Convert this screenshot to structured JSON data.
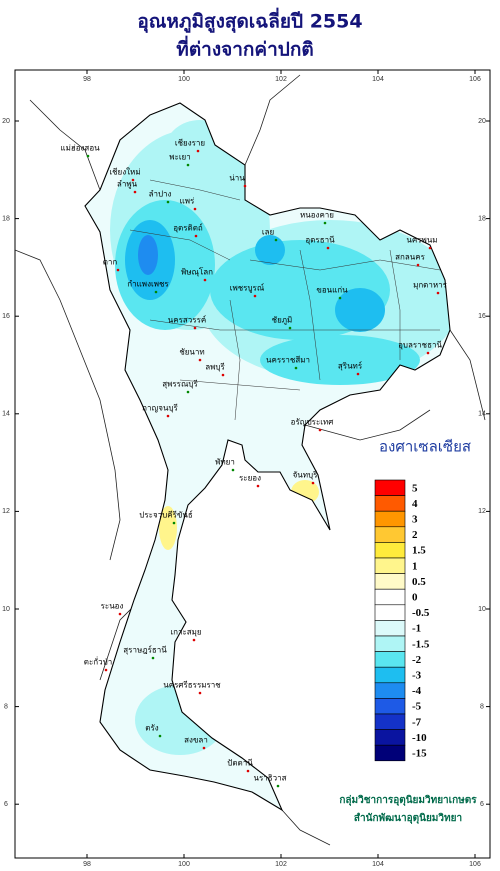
{
  "title": "อุณหภูมิสูงสุดเฉลี่ยปี  2554",
  "subtitle": "ที่ต่างจากค่าปกติ",
  "lon_ticks": [
    98,
    100,
    102,
    104,
    106
  ],
  "lat_ticks": [
    6,
    8,
    10,
    12,
    14,
    16,
    18,
    20
  ],
  "legend": {
    "title": "องศาเซลเซียส",
    "levels": [
      {
        "value": 5,
        "color": "#ff0000"
      },
      {
        "value": 4,
        "color": "#ff5a00"
      },
      {
        "value": 3,
        "color": "#ff9600"
      },
      {
        "value": 2,
        "color": "#ffc832"
      },
      {
        "value": 1.5,
        "color": "#ffeb3c"
      },
      {
        "value": 1,
        "color": "#fff58c"
      },
      {
        "value": 0.5,
        "color": "#fffac8"
      },
      {
        "value": 0,
        "color": "#ffffff"
      },
      {
        "value": -0.5,
        "color": "#ffffff"
      },
      {
        "value": -1,
        "color": "#dcfafa"
      },
      {
        "value": -1.5,
        "color": "#aff5f5"
      },
      {
        "value": -2,
        "color": "#5ae6f0"
      },
      {
        "value": -3,
        "color": "#1ebef0"
      },
      {
        "value": -4,
        "color": "#1e8cf0"
      },
      {
        "value": -5,
        "color": "#1e5ae6"
      },
      {
        "value": -7,
        "color": "#1432c8"
      },
      {
        "value": -10,
        "color": "#0a14a0"
      },
      {
        "value": -15,
        "color": "#000078"
      }
    ]
  },
  "credits": [
    "กลุ่มวิชาการอุตุนิยมวิทยาเกษตร",
    "สำนักพัฒนาอุตุนิยมวิทยา"
  ],
  "provinces": [
    "แม่ฮ่องสอน",
    "เชียงราย",
    "เชียงใหม่",
    "พะเยา",
    "ลำพูน",
    "น่าน",
    "ลำปาง",
    "แพร่",
    "อุตรดิตถ์",
    "หนองคาย",
    "อุดรธานี",
    "นครพนม",
    "เลย",
    "สกลนคร",
    "ตาก",
    "กำแพงเพชร",
    "พิษณุโลก",
    "เพชรบูรณ์",
    "ขอนแก่น",
    "มุกดาหาร",
    "นครสวรรค์",
    "ชัยภูมิ",
    "อุบลราชธานี",
    "ชัยนาท",
    "นครราชสีมา",
    "สุรินทร์",
    "ลพบุรี",
    "สุพรรณบุรี",
    "กาญจนบุรี",
    "อรัญประเทศ",
    "พัทยา",
    "ระยอง",
    "จันทบุรี",
    "ประจวบคีรีขันธ์",
    "ระนอง",
    "เกาะสมุย",
    "สุราษฎร์ธานี",
    "ตะกั่วป่า",
    "นครศรีธรรมราช",
    "ตรัง",
    "สงขลา",
    "ปัตตานี",
    "นราธิวาส"
  ]
}
